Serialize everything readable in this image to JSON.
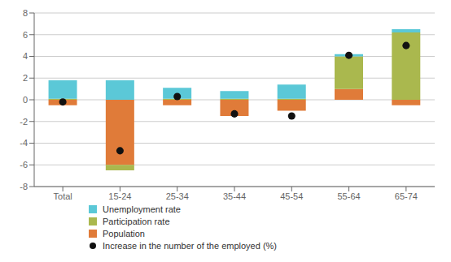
{
  "chart_data": {
    "type": "bar",
    "stacked": true,
    "grid": true,
    "legend": "bottom",
    "categories": [
      "Total",
      "15-24",
      "25-34",
      "35-44",
      "45-54",
      "55-64",
      "65-74"
    ],
    "series": [
      {
        "name": "Unemployment rate",
        "type": "bar",
        "color": "#5bc8d7",
        "values": [
          1.7,
          1.8,
          1.0,
          0.7,
          1.3,
          0.2,
          0.3
        ]
      },
      {
        "name": "Participation rate",
        "type": "bar",
        "color": "#aab84e",
        "values": [
          0.1,
          -0.5,
          0.1,
          0.1,
          0.1,
          3.0,
          6.2
        ]
      },
      {
        "name": "Population",
        "type": "bar",
        "color": "#e07b39",
        "values": [
          -0.5,
          -6.0,
          -0.5,
          -1.5,
          -1.0,
          1.0,
          -0.5
        ]
      },
      {
        "name": "Increase in the number of the employed (%)",
        "type": "scatter",
        "marker": "circle",
        "color": "#111111",
        "values": [
          -0.2,
          -4.7,
          0.3,
          -1.3,
          -1.5,
          4.1,
          5.0
        ]
      }
    ],
    "ylim": [
      -8,
      8
    ],
    "yticks": [
      -8,
      -6,
      -4,
      -2,
      0,
      2,
      4,
      6,
      8
    ]
  }
}
